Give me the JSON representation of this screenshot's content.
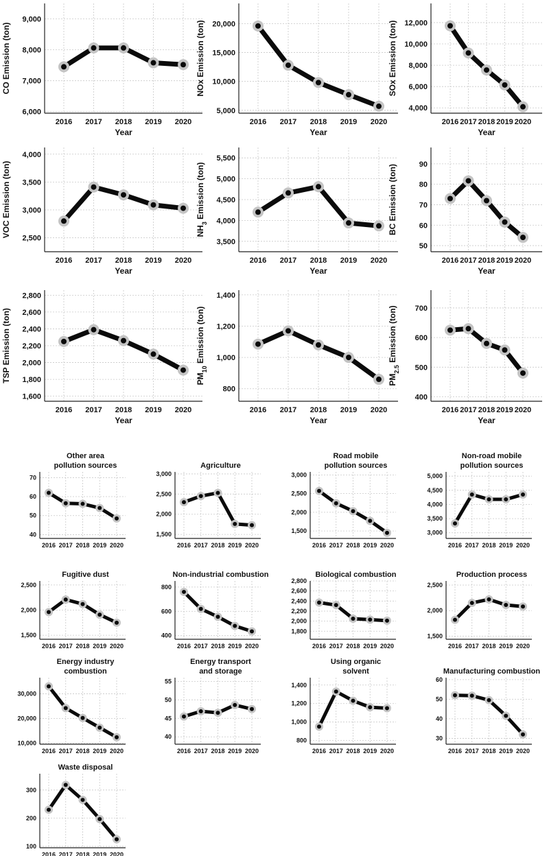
{
  "chart_data": [
    {
      "type": "line",
      "group": "species",
      "categories": [
        "2016",
        "2017",
        "2018",
        "2019",
        "2020"
      ],
      "values": [
        7450,
        8060,
        8060,
        7580,
        7520
      ],
      "ylabel": "CO Emission (ton)",
      "ylabel_parts": [
        [
          "CO Emission (ton)",
          ""
        ]
      ],
      "xlabel": "Year",
      "ylim": [
        5950,
        9500
      ],
      "yticks": [
        6000,
        7000,
        8000,
        9000
      ],
      "ytick_labels": [
        "6,000",
        "7,000",
        "8,000",
        "9,000"
      ]
    },
    {
      "type": "line",
      "group": "species",
      "categories": [
        "2016",
        "2017",
        "2018",
        "2019",
        "2020"
      ],
      "values": [
        19600,
        12800,
        9800,
        7700,
        5700
      ],
      "ylabel": "NOx Emission (ton)",
      "ylabel_parts": [
        [
          "NOx Emission (ton)",
          ""
        ]
      ],
      "xlabel": "Year",
      "ylim": [
        4500,
        23500
      ],
      "yticks": [
        5000,
        10000,
        15000,
        20000
      ],
      "ytick_labels": [
        "5,000",
        "10,000",
        "15,000",
        "20,000"
      ]
    },
    {
      "type": "line",
      "group": "species",
      "categories": [
        "2016",
        "2017",
        "2018",
        "2019",
        "2020"
      ],
      "values": [
        11700,
        9150,
        7550,
        6150,
        4100
      ],
      "ylabel": "SOx Emission (ton)",
      "ylabel_parts": [
        [
          "SOx Emission (ton)",
          ""
        ]
      ],
      "xlabel": "Year",
      "ylim": [
        3500,
        13800
      ],
      "yticks": [
        4000,
        6000,
        8000,
        10000,
        12000
      ],
      "ytick_labels": [
        "4,000",
        "6,000",
        "8,000",
        "10,000",
        "12,000"
      ]
    },
    {
      "type": "line",
      "group": "species",
      "categories": [
        "2016",
        "2017",
        "2018",
        "2019",
        "2020"
      ],
      "values": [
        2800,
        3410,
        3270,
        3090,
        3030
      ],
      "ylabel": "VOC Emission (ton)",
      "ylabel_parts": [
        [
          "VOC Emission (ton)",
          ""
        ]
      ],
      "xlabel": "Year",
      "ylim": [
        2250,
        4120
      ],
      "yticks": [
        2500,
        3000,
        3500,
        4000
      ],
      "ytick_labels": [
        "2,500",
        "3,000",
        "3,500",
        "4,000"
      ]
    },
    {
      "type": "line",
      "group": "species",
      "categories": [
        "2016",
        "2017",
        "2018",
        "2019",
        "2020"
      ],
      "values": [
        4200,
        4660,
        4810,
        3940,
        3870
      ],
      "ylabel": "NH3 Emission (ton)",
      "ylabel_parts": [
        [
          "NH",
          "normal"
        ],
        [
          "3",
          "sub"
        ],
        [
          " Emission (ton)",
          "normal"
        ]
      ],
      "xlabel": "Year",
      "ylim": [
        3250,
        5750
      ],
      "yticks": [
        3500,
        4000,
        4500,
        5000,
        5500
      ],
      "ytick_labels": [
        "3,500",
        "4,000",
        "4,500",
        "5,000",
        "5,500"
      ]
    },
    {
      "type": "line",
      "group": "species",
      "categories": [
        "2016",
        "2017",
        "2018",
        "2019",
        "2020"
      ],
      "values": [
        73,
        81.7,
        72,
        61.5,
        54
      ],
      "ylabel": "BC Emission (ton)",
      "ylabel_parts": [
        [
          "BC Emission (ton)",
          ""
        ]
      ],
      "xlabel": "Year",
      "ylim": [
        47,
        98
      ],
      "yticks": [
        50,
        60,
        70,
        80,
        90
      ],
      "ytick_labels": [
        "50",
        "60",
        "70",
        "80",
        "90"
      ]
    },
    {
      "type": "line",
      "group": "species",
      "categories": [
        "2016",
        "2017",
        "2018",
        "2019",
        "2020"
      ],
      "values": [
        2250,
        2390,
        2260,
        2100,
        1910
      ],
      "ylabel": "TSP Emission (ton)",
      "ylabel_parts": [
        [
          "TSP Emission (ton)",
          ""
        ]
      ],
      "xlabel": "Year",
      "ylim": [
        1540,
        2860
      ],
      "yticks": [
        1600,
        1800,
        2000,
        2200,
        2400,
        2600,
        2800
      ],
      "ytick_labels": [
        "1,600",
        "1,800",
        "2,000",
        "2,200",
        "2,400",
        "2,600",
        "2,800"
      ]
    },
    {
      "type": "line",
      "group": "species",
      "categories": [
        "2016",
        "2017",
        "2018",
        "2019",
        "2020"
      ],
      "values": [
        1085,
        1170,
        1080,
        1000,
        860
      ],
      "ylabel": "PM10 Emission (ton)",
      "ylabel_parts": [
        [
          "PM",
          "normal"
        ],
        [
          "10",
          "sub"
        ],
        [
          " Emission (ton)",
          "normal"
        ]
      ],
      "xlabel": "Year",
      "ylim": [
        720,
        1430
      ],
      "yticks": [
        800,
        1000,
        1200,
        1400
      ],
      "ytick_labels": [
        "800",
        "1,000",
        "1,200",
        "1,400"
      ]
    },
    {
      "type": "line",
      "group": "species",
      "categories": [
        "2016",
        "2017",
        "2018",
        "2019",
        "2020"
      ],
      "values": [
        625,
        630,
        580,
        558,
        480
      ],
      "ylabel": "PM2.5 Emission (ton)",
      "ylabel_parts": [
        [
          "PM",
          "normal"
        ],
        [
          "2.5",
          "sub"
        ],
        [
          " Emission (ton)",
          "normal"
        ]
      ],
      "xlabel": "Year",
      "ylim": [
        385,
        760
      ],
      "yticks": [
        400,
        500,
        600,
        700
      ],
      "ytick_labels": [
        "400",
        "500",
        "600",
        "700"
      ]
    },
    {
      "type": "line",
      "group": "sources",
      "categories": [
        "2016",
        "2017",
        "2018",
        "2019",
        "2020"
      ],
      "values": [
        62,
        56.5,
        56.2,
        54,
        48.5
      ],
      "title_lines": [
        "Other area",
        "pollution sources"
      ],
      "ylim": [
        38,
        73
      ],
      "yticks": [
        40,
        50,
        60,
        70
      ],
      "ytick_labels": [
        "40",
        "50",
        "60",
        "70"
      ]
    },
    {
      "type": "line",
      "group": "sources",
      "categories": [
        "2016",
        "2017",
        "2018",
        "2019",
        "2020"
      ],
      "values": [
        2300,
        2450,
        2530,
        1760,
        1730
      ],
      "title_lines": [
        "Agriculture"
      ],
      "ylim": [
        1400,
        3050
      ],
      "yticks": [
        1500,
        2000,
        2500,
        3000
      ],
      "ytick_labels": [
        "1,500",
        "2,000",
        "2,500",
        "3,000"
      ]
    },
    {
      "type": "line",
      "group": "sources",
      "categories": [
        "2016",
        "2017",
        "2018",
        "2019",
        "2020"
      ],
      "values": [
        2570,
        2240,
        2030,
        1770,
        1450
      ],
      "title_lines": [
        "Road mobile",
        "pollution sources"
      ],
      "ylim": [
        1300,
        3080
      ],
      "yticks": [
        1500,
        2000,
        2500,
        3000
      ],
      "ytick_labels": [
        "1,500",
        "2,000",
        "2,500",
        "3,000"
      ]
    },
    {
      "type": "line",
      "group": "sources",
      "categories": [
        "2016",
        "2017",
        "2018",
        "2019",
        "2020"
      ],
      "values": [
        3330,
        4350,
        4180,
        4180,
        4350
      ],
      "title_lines": [
        "Non-road mobile",
        "pollution sources"
      ],
      "ylim": [
        2800,
        5150
      ],
      "yticks": [
        3000,
        3500,
        4000,
        4500,
        5000
      ],
      "ytick_labels": [
        "3,000",
        "3,500",
        "4,000",
        "4,500",
        "5,000"
      ]
    },
    {
      "type": "line",
      "group": "sources",
      "categories": [
        "2016",
        "2017",
        "2018",
        "2019",
        "2020"
      ],
      "values": [
        1960,
        2210,
        2120,
        1910,
        1750
      ],
      "title_lines": [
        "Fugitive dust"
      ],
      "ylim": [
        1420,
        2580
      ],
      "yticks": [
        1500,
        2000,
        2500
      ],
      "ytick_labels": [
        "1,500",
        "2,000",
        "2,500"
      ]
    },
    {
      "type": "line",
      "group": "sources",
      "categories": [
        "2016",
        "2017",
        "2018",
        "2019",
        "2020"
      ],
      "values": [
        760,
        620,
        555,
        480,
        435
      ],
      "title_lines": [
        "Non-industrial combustion"
      ],
      "ylim": [
        370,
        850
      ],
      "yticks": [
        400,
        600,
        800
      ],
      "ytick_labels": [
        "400",
        "600",
        "800"
      ]
    },
    {
      "type": "line",
      "group": "sources",
      "categories": [
        "2016",
        "2017",
        "2018",
        "2019",
        "2020"
      ],
      "values": [
        2370,
        2320,
        2050,
        2030,
        2010
      ],
      "title_lines": [
        "Biological combustion"
      ],
      "ylim": [
        1640,
        2800
      ],
      "yticks": [
        1800,
        2000,
        2200,
        2400,
        2600,
        2800
      ],
      "ytick_labels": [
        "1,800",
        "2,000",
        "2,200",
        "2,400",
        "2,600",
        "2,800"
      ]
    },
    {
      "type": "line",
      "group": "sources",
      "categories": [
        "2016",
        "2017",
        "2018",
        "2019",
        "2020"
      ],
      "values": [
        1820,
        2150,
        2220,
        2110,
        2080
      ],
      "title_lines": [
        "Production process"
      ],
      "ylim": [
        1440,
        2580
      ],
      "yticks": [
        1500,
        2000,
        2500
      ],
      "ytick_labels": [
        "1,500",
        "2,000",
        "2,500"
      ]
    },
    {
      "type": "line",
      "group": "sources",
      "categories": [
        "2016",
        "2017",
        "2018",
        "2019",
        "2020"
      ],
      "values": [
        33000,
        24200,
        20200,
        16300,
        12400
      ],
      "title_lines": [
        "Energy industry",
        "combustion"
      ],
      "ylim": [
        9600,
        36500
      ],
      "yticks": [
        10000,
        20000,
        30000
      ],
      "ytick_labels": [
        "10,000",
        "20,000",
        "30,000"
      ]
    },
    {
      "type": "line",
      "group": "sources",
      "categories": [
        "2016",
        "2017",
        "2018",
        "2019",
        "2020"
      ],
      "values": [
        45.5,
        46.9,
        46.5,
        48.6,
        47.5
      ],
      "title_lines": [
        "Energy transport",
        "and storage"
      ],
      "ylim": [
        38,
        56
      ],
      "yticks": [
        40,
        45,
        50,
        55
      ],
      "ytick_labels": [
        "40",
        "45",
        "50",
        "55"
      ]
    },
    {
      "type": "line",
      "group": "sources",
      "categories": [
        "2016",
        "2017",
        "2018",
        "2019",
        "2020"
      ],
      "values": [
        950,
        1330,
        1230,
        1160,
        1150
      ],
      "title_lines": [
        "Using organic",
        "solvent"
      ],
      "ylim": [
        760,
        1480
      ],
      "yticks": [
        800,
        1000,
        1200,
        1400
      ],
      "ytick_labels": [
        "800",
        "1,000",
        "1,200",
        "1,400"
      ]
    },
    {
      "type": "line",
      "group": "sources",
      "categories": [
        "2016",
        "2017",
        "2018",
        "2019",
        "2020"
      ],
      "values": [
        52,
        51.8,
        49.5,
        41.5,
        32
      ],
      "title_lines": [
        "Manufacturing combustion"
      ],
      "ylim": [
        27,
        61
      ],
      "yticks": [
        30,
        40,
        50,
        60
      ],
      "ytick_labels": [
        "30",
        "40",
        "50",
        "60"
      ]
    },
    {
      "type": "line",
      "group": "sources",
      "categories": [
        "2016",
        "2017",
        "2018",
        "2019",
        "2020"
      ],
      "values": [
        230,
        318,
        265,
        197,
        125
      ],
      "title_lines": [
        "Waste disposal"
      ],
      "ylim": [
        95,
        358
      ],
      "yticks": [
        100,
        200,
        300
      ],
      "ytick_labels": [
        "100",
        "200",
        "300"
      ]
    }
  ]
}
